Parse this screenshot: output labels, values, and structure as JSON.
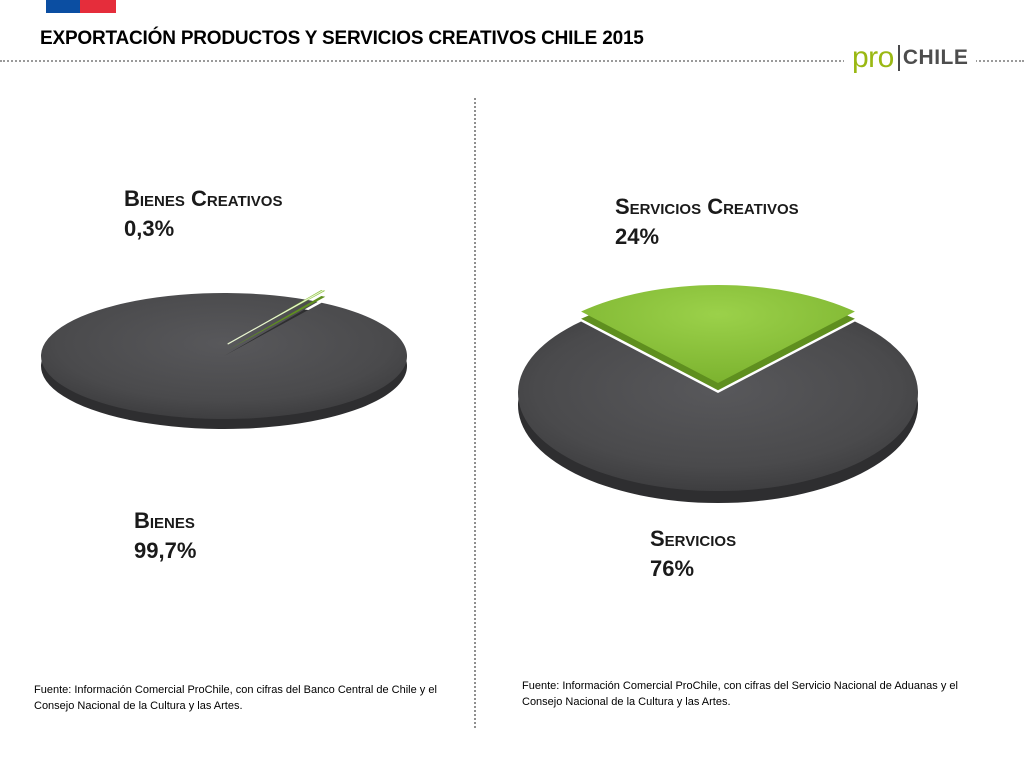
{
  "header": {
    "title": "EXPORTACIÓN PRODUCTOS Y SERVICIOS CREATIVOS CHILE 2015",
    "logo_pro": "pro",
    "logo_chile": "CHILE",
    "flag_colors": {
      "blue": "#0b4ea2",
      "red": "#e52d3b"
    }
  },
  "colors": {
    "dark_slice": "#4a4a4c",
    "dark_slice_edge": "#2e2e30",
    "green_slice": "#8dc63f",
    "green_slice_edge": "#5f8f1f",
    "logo_green": "#9ab813"
  },
  "chart_data": [
    {
      "type": "pie",
      "categories": [
        "Bienes Creativos",
        "Bienes"
      ],
      "values": [
        0.3,
        99.7
      ],
      "data_labels": [
        "0,3%",
        "99,7%"
      ],
      "style": "3d-exploded",
      "source": "Fuente: Información Comercial ProChile, con cifras del Banco Central de Chile y el Consejo Nacional de la Cultura y las Artes."
    },
    {
      "type": "pie",
      "categories": [
        "Servicios Creativos",
        "Servicios"
      ],
      "values": [
        24,
        76
      ],
      "data_labels": [
        "24%",
        "76%"
      ],
      "style": "3d-exploded",
      "source": "Fuente: Información Comercial ProChile, con cifras del Servicio Nacional de Aduanas y el Consejo Nacional de la Cultura y las Artes."
    }
  ]
}
